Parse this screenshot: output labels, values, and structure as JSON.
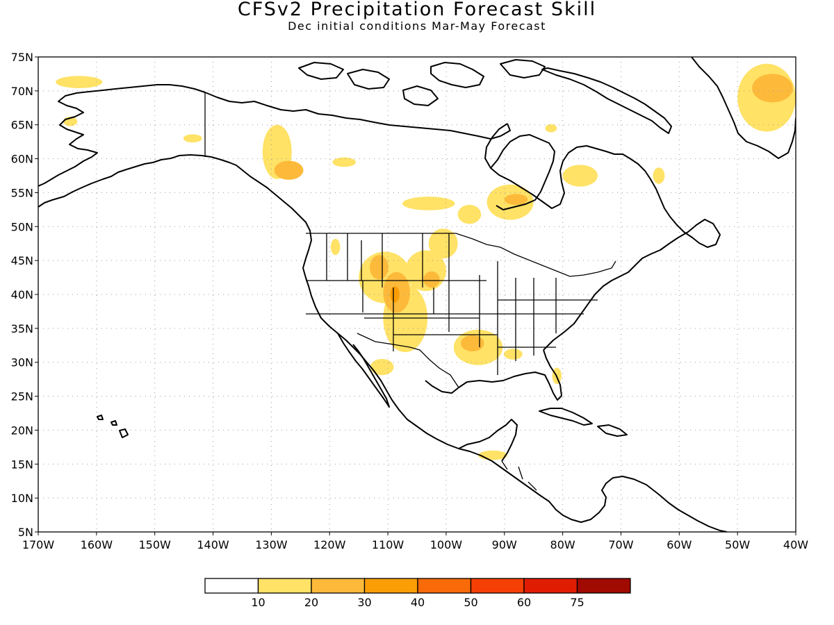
{
  "title": "CFSv2 Precipitation Forecast Skill",
  "subtitle": "Dec initial conditions  Mar-May Forecast",
  "map": {
    "lon_range": [
      -170,
      -40
    ],
    "lat_range": [
      5,
      75
    ],
    "lat_ticks": [
      {
        "value": 75,
        "label": "75N"
      },
      {
        "value": 70,
        "label": "70N"
      },
      {
        "value": 65,
        "label": "65N"
      },
      {
        "value": 60,
        "label": "60N"
      },
      {
        "value": 55,
        "label": "55N"
      },
      {
        "value": 50,
        "label": "50N"
      },
      {
        "value": 45,
        "label": "45N"
      },
      {
        "value": 40,
        "label": "40N"
      },
      {
        "value": 35,
        "label": "35N"
      },
      {
        "value": 30,
        "label": "30N"
      },
      {
        "value": 25,
        "label": "25N"
      },
      {
        "value": 20,
        "label": "20N"
      },
      {
        "value": 15,
        "label": "15N"
      },
      {
        "value": 10,
        "label": "10N"
      },
      {
        "value": 5,
        "label": "5N"
      }
    ],
    "lon_ticks": [
      {
        "value": -170,
        "label": "170W"
      },
      {
        "value": -160,
        "label": "160W"
      },
      {
        "value": -150,
        "label": "150W"
      },
      {
        "value": -140,
        "label": "140W"
      },
      {
        "value": -130,
        "label": "130W"
      },
      {
        "value": -120,
        "label": "120W"
      },
      {
        "value": -110,
        "label": "110W"
      },
      {
        "value": -100,
        "label": "100W"
      },
      {
        "value": -90,
        "label": "90W"
      },
      {
        "value": -80,
        "label": "80W"
      },
      {
        "value": -70,
        "label": "70W"
      },
      {
        "value": -60,
        "label": "60W"
      },
      {
        "value": -50,
        "label": "50W"
      },
      {
        "value": -40,
        "label": "40W"
      }
    ],
    "skill_regions": [
      {
        "lon": -163,
        "lat": 71.3,
        "rx": 4,
        "ry": 0.9,
        "level": 10
      },
      {
        "lon": -164.5,
        "lat": 65.5,
        "rx": 1.2,
        "ry": 0.7,
        "level": 10
      },
      {
        "lon": -143.5,
        "lat": 63,
        "rx": 1.6,
        "ry": 0.6,
        "level": 10
      },
      {
        "lon": -129,
        "lat": 61,
        "rx": 2.5,
        "ry": 4,
        "level": 10
      },
      {
        "lon": -127,
        "lat": 58.3,
        "rx": 2.5,
        "ry": 1.4,
        "level": 20
      },
      {
        "lon": -117.5,
        "lat": 59.5,
        "rx": 2,
        "ry": 0.7,
        "level": 10
      },
      {
        "lon": -103,
        "lat": 53.4,
        "rx": 4.5,
        "ry": 1,
        "level": 10
      },
      {
        "lon": -89,
        "lat": 53.6,
        "rx": 4,
        "ry": 2.6,
        "level": 10
      },
      {
        "lon": -88,
        "lat": 54,
        "rx": 2,
        "ry": 0.8,
        "level": 20
      },
      {
        "lon": -96,
        "lat": 51.8,
        "rx": 2,
        "ry": 1.4,
        "level": 10
      },
      {
        "lon": -77,
        "lat": 57.5,
        "rx": 3,
        "ry": 1.6,
        "level": 10
      },
      {
        "lon": -63.5,
        "lat": 57.5,
        "rx": 1,
        "ry": 1.2,
        "level": 10
      },
      {
        "lon": -82,
        "lat": 64.5,
        "rx": 1,
        "ry": 0.6,
        "level": 10
      },
      {
        "lon": -45,
        "lat": 69,
        "rx": 5,
        "ry": 5,
        "level": 10
      },
      {
        "lon": -44,
        "lat": 70.4,
        "rx": 3.5,
        "ry": 2.1,
        "level": 20
      },
      {
        "lon": -110.5,
        "lat": 42.5,
        "rx": 4.5,
        "ry": 3.8,
        "level": 10
      },
      {
        "lon": -111.5,
        "lat": 44,
        "rx": 1.6,
        "ry": 1.8,
        "level": 20
      },
      {
        "lon": -107,
        "lat": 36.5,
        "rx": 3.8,
        "ry": 5,
        "level": 10
      },
      {
        "lon": -108.5,
        "lat": 40.3,
        "rx": 2.3,
        "ry": 3,
        "level": 20
      },
      {
        "lon": -108.8,
        "lat": 40,
        "rx": 0.8,
        "ry": 1.2,
        "level": 30
      },
      {
        "lon": -103.5,
        "lat": 43.5,
        "rx": 3.5,
        "ry": 3,
        "level": 10
      },
      {
        "lon": -102.5,
        "lat": 42.2,
        "rx": 1.4,
        "ry": 1.2,
        "level": 20
      },
      {
        "lon": -100.5,
        "lat": 47.5,
        "rx": 2.5,
        "ry": 2.2,
        "level": 10
      },
      {
        "lon": -119,
        "lat": 47,
        "rx": 0.8,
        "ry": 1.2,
        "level": 10
      },
      {
        "lon": -94.5,
        "lat": 32.2,
        "rx": 4.2,
        "ry": 2.6,
        "level": 10
      },
      {
        "lon": -95.5,
        "lat": 32.8,
        "rx": 2,
        "ry": 1.2,
        "level": 20
      },
      {
        "lon": -88.5,
        "lat": 31.2,
        "rx": 1.6,
        "ry": 0.8,
        "level": 10
      },
      {
        "lon": -81,
        "lat": 28,
        "rx": 0.8,
        "ry": 1.2,
        "level": 10
      },
      {
        "lon": -111,
        "lat": 29.3,
        "rx": 2,
        "ry": 1.2,
        "level": 10
      },
      {
        "lon": -92,
        "lat": 16.3,
        "rx": 2.5,
        "ry": 0.7,
        "level": 10
      }
    ]
  },
  "legend": {
    "labels": [
      "10",
      "20",
      "30",
      "40",
      "50",
      "60",
      "75"
    ],
    "colors": [
      "#ffffff",
      "#ffe266",
      "#fdba3a",
      "#fb9e06",
      "#f96a08",
      "#f53f04",
      "#e01d03",
      "#a10a01"
    ]
  }
}
